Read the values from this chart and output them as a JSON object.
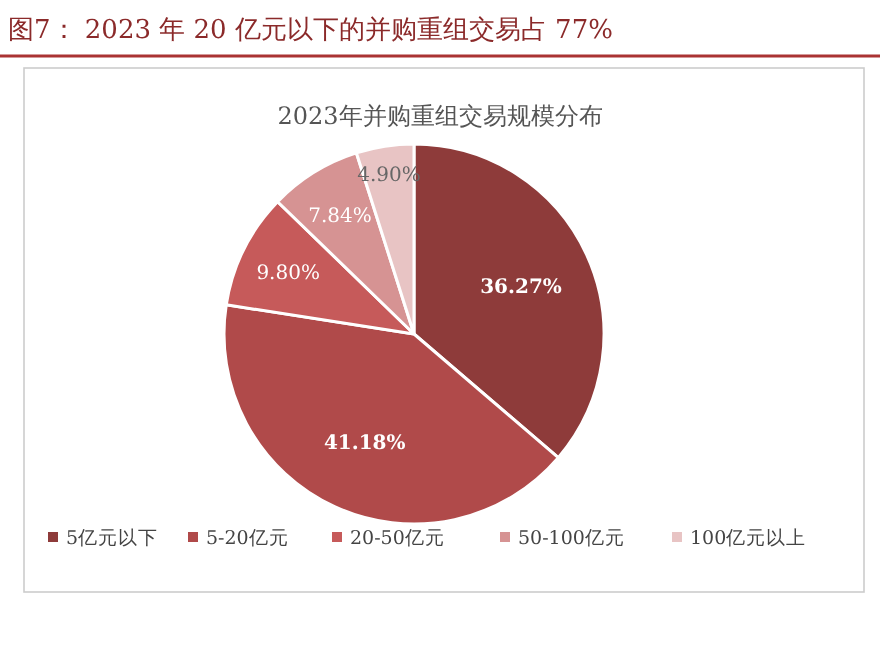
{
  "chart_data": {
    "type": "pie",
    "title": "图7：  2023 年 20 亿元以下的并购重组交易占 77%",
    "subtitle": "2023年并购重组交易规模分布",
    "categories": [
      "5亿元以下",
      "5-20亿元",
      "20-50亿元",
      "50-100亿元",
      "100亿元以上"
    ],
    "values": [
      36.27,
      41.18,
      9.8,
      7.84,
      4.9
    ],
    "value_labels": [
      "36.27%",
      "41.18%",
      "9.80%",
      "7.84%",
      "4.90%"
    ],
    "colors": [
      "#8e3b3a",
      "#b04a4a",
      "#c65a5a",
      "#d69393",
      "#e8c4c4"
    ],
    "legend": "bottom"
  }
}
